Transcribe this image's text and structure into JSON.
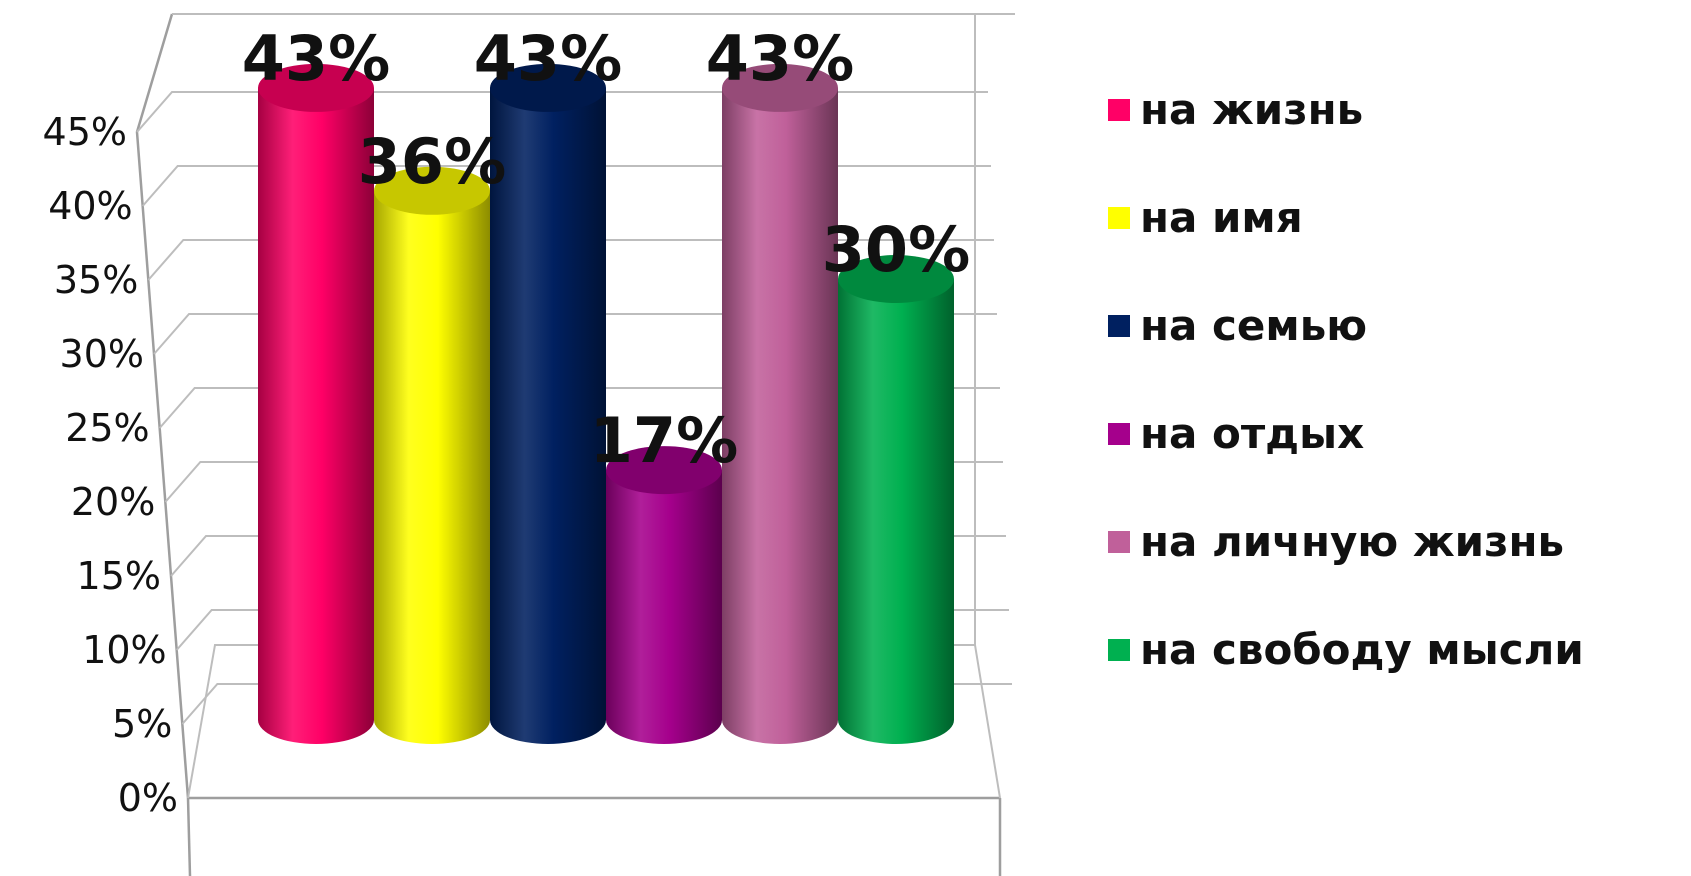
{
  "chart_data": {
    "type": "bar",
    "style": "3d-cylinder",
    "categories": [
      "на жизнь",
      "на имя",
      "на семью",
      "на отдых",
      "на личную жизнь",
      "на свободу мысли"
    ],
    "values": [
      43,
      36,
      43,
      17,
      43,
      30
    ],
    "data_labels": [
      "43%",
      "36%",
      "43%",
      "17%",
      "43%",
      "30%"
    ],
    "colors": [
      "#ff0066",
      "#ffff00",
      "#002060",
      "#a5008c",
      "#c0609a",
      "#00b050"
    ],
    "yticks": [
      "0%",
      "5%",
      "10%",
      "15%",
      "20%",
      "25%",
      "30%",
      "35%",
      "40%",
      "45%"
    ],
    "ylim": [
      0,
      50
    ],
    "grid": true,
    "legend": "right",
    "title": "",
    "xlabel": "",
    "ylabel": ""
  }
}
